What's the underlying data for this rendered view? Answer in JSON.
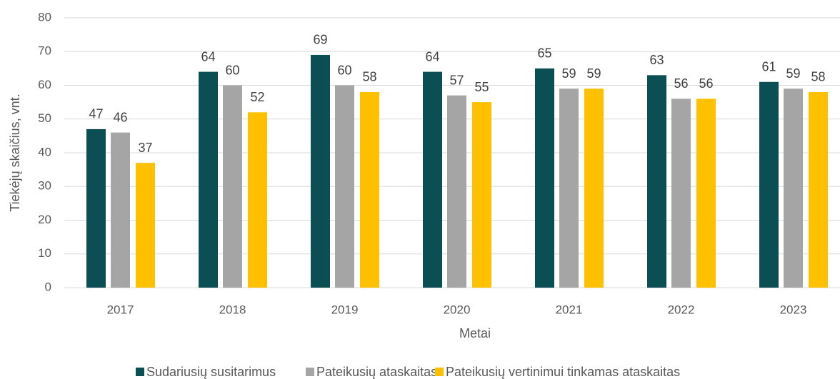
{
  "chart_data": {
    "type": "bar",
    "categories": [
      "2017",
      "2018",
      "2019",
      "2020",
      "2021",
      "2022",
      "2023"
    ],
    "series": [
      {
        "name": "Sudariusių susitarimus",
        "color": "#0b4f55",
        "values": [
          47,
          64,
          69,
          64,
          65,
          63,
          61
        ]
      },
      {
        "name": "Pateikusių ataskaitas",
        "color": "#a5a5a5",
        "values": [
          46,
          60,
          60,
          57,
          59,
          56,
          59
        ]
      },
      {
        "name": "Pateikusių vertinimui tinkamas ataskaitas",
        "color": "#ffc000",
        "values": [
          37,
          52,
          58,
          55,
          59,
          56,
          58
        ]
      }
    ],
    "ylabel": "Tiekėjų skaičius, vnt.",
    "xlabel": "Metai",
    "ylim": [
      0,
      80
    ],
    "yticks": [
      0,
      10,
      20,
      30,
      40,
      50,
      60,
      70,
      80
    ],
    "grid": true,
    "legend": "bottom"
  }
}
